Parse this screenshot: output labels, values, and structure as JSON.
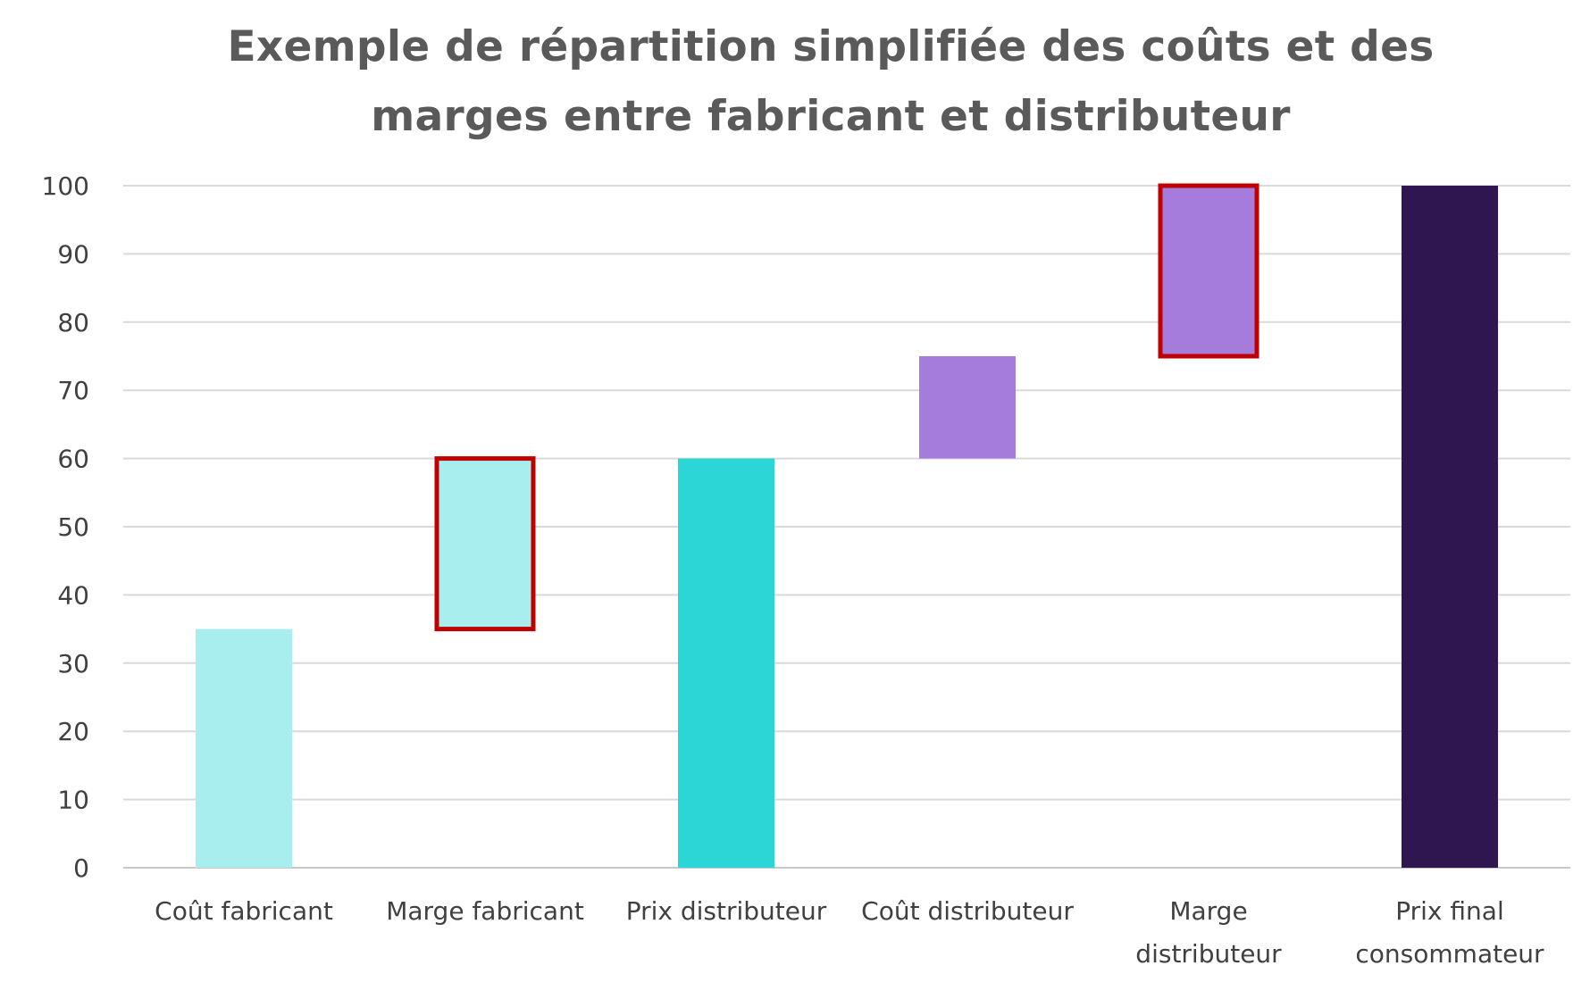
{
  "chart_data": {
    "type": "bar",
    "title_lines": [
      "Exemple de répartition simplifiée des coûts et des",
      "marges entre fabricant et distributeur"
    ],
    "ylim": [
      0,
      100
    ],
    "yticks": [
      0,
      10,
      20,
      30,
      40,
      50,
      60,
      70,
      80,
      90,
      100
    ],
    "grid": true,
    "legend": "none",
    "categories": [
      [
        "Coût fabricant"
      ],
      [
        "Marge fabricant"
      ],
      [
        "Prix distributeur"
      ],
      [
        "Coût distributeur"
      ],
      [
        "Marge",
        "distributeur"
      ],
      [
        "Prix final",
        "consommateur"
      ]
    ],
    "bars": [
      {
        "base": 0,
        "top": 35,
        "color": "#a9eeee",
        "highlight": false
      },
      {
        "base": 35,
        "top": 60,
        "color": "#a9eeee",
        "highlight": true
      },
      {
        "base": 0,
        "top": 60,
        "color": "#2dd6d6",
        "highlight": false
      },
      {
        "base": 60,
        "top": 75,
        "color": "#a57bdc",
        "highlight": false
      },
      {
        "base": 75,
        "top": 100,
        "color": "#a57bdc",
        "highlight": true
      },
      {
        "base": 0,
        "top": 100,
        "color": "#2f1650",
        "highlight": false
      }
    ],
    "colors": {
      "grid": "#d9d9d9",
      "axis": "#c8c8c8",
      "highlight_border": "#c00000"
    }
  }
}
